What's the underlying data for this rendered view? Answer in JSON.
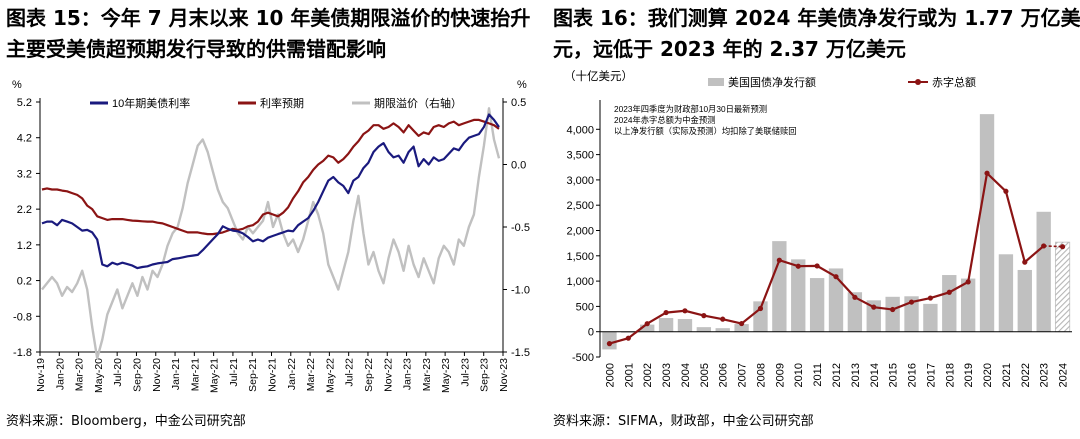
{
  "left": {
    "title_line1": "图表 15：今年 7 月末以来 10 年美债期限溢价的快速抬升",
    "title_line2": "主要受美债超预期发行导致的供需错配影响",
    "source": "资料来源：Bloomberg，中金公司研究部"
  },
  "right": {
    "title_line1": "图表 16：我们测算 2024 年美债净发行或为 1.77 万亿美",
    "title_line2": "元，远低于 2023 年的 2.37 万亿美元",
    "source": "资料来源：SIFMA，财政部，中金公司研究部"
  },
  "chart_data": [
    {
      "type": "line",
      "y_left": {
        "unit": "%",
        "ticks": [
          5.2,
          4.2,
          3.2,
          2.2,
          1.2,
          0.2,
          -0.8,
          -1.8
        ],
        "range": [
          -1.8,
          5.2
        ]
      },
      "y_right": {
        "unit": "%",
        "label": "",
        "ticks": [
          0.5,
          0.0,
          -0.5,
          -1.0,
          -1.5
        ],
        "range": [
          -1.5,
          0.5
        ]
      },
      "x_ticks": [
        "Nov-19",
        "Jan-20",
        "Mar-20",
        "May-20",
        "Jul-20",
        "Sep-20",
        "Nov-20",
        "Jan-21",
        "Mar-21",
        "May-21",
        "Jul-21",
        "Sep-21",
        "Nov-21",
        "Jan-22",
        "Mar-22",
        "May-22",
        "Jul-22",
        "Sep-22",
        "Nov-22",
        "Jan-23",
        "Mar-23",
        "May-23",
        "Jul-23",
        "Sep-23",
        "Nov-23"
      ],
      "legend_position": "top",
      "series": [
        {
          "name": "10年期美债利率",
          "color": "#1a1a7e",
          "axis": "left",
          "values": [
            1.8,
            1.85,
            1.85,
            1.75,
            1.9,
            1.85,
            1.8,
            1.7,
            1.6,
            1.62,
            1.55,
            1.35,
            0.65,
            0.6,
            0.7,
            0.65,
            0.7,
            0.66,
            0.62,
            0.55,
            0.58,
            0.6,
            0.65,
            0.68,
            0.7,
            0.72,
            0.8,
            0.82,
            0.85,
            0.88,
            0.9,
            0.92,
            1.05,
            1.2,
            1.35,
            1.5,
            1.72,
            1.65,
            1.6,
            1.58,
            1.52,
            1.42,
            1.3,
            1.35,
            1.3,
            1.4,
            1.45,
            1.5,
            1.55,
            1.6,
            1.58,
            1.75,
            1.85,
            1.95,
            2.15,
            2.4,
            2.7,
            3.0,
            3.1,
            2.95,
            2.85,
            2.65,
            3.0,
            3.1,
            3.35,
            3.5,
            3.8,
            3.95,
            4.05,
            3.8,
            3.65,
            3.7,
            3.5,
            3.8,
            3.95,
            3.4,
            3.6,
            3.45,
            3.65,
            3.55,
            3.6,
            3.75,
            3.9,
            3.85,
            4.05,
            4.2,
            4.25,
            4.3,
            4.5,
            4.85,
            4.7,
            4.5
          ]
        },
        {
          "name": "利率预期",
          "color": "#8b1414",
          "axis": "left",
          "values": [
            2.75,
            2.78,
            2.75,
            2.75,
            2.72,
            2.7,
            2.65,
            2.6,
            2.5,
            2.3,
            2.2,
            2.0,
            1.95,
            1.9,
            1.92,
            1.92,
            1.92,
            1.9,
            1.88,
            1.87,
            1.86,
            1.85,
            1.85,
            1.82,
            1.8,
            1.75,
            1.7,
            1.65,
            1.6,
            1.55,
            1.55,
            1.55,
            1.52,
            1.5,
            1.5,
            1.52,
            1.55,
            1.6,
            1.65,
            1.62,
            1.65,
            1.72,
            1.75,
            1.85,
            2.05,
            2.1,
            2.05,
            2.0,
            2.1,
            2.25,
            2.5,
            2.7,
            2.95,
            3.1,
            3.3,
            3.45,
            3.55,
            3.7,
            3.65,
            3.5,
            3.6,
            3.75,
            3.95,
            4.1,
            4.3,
            4.4,
            4.55,
            4.55,
            4.45,
            4.5,
            4.6,
            4.5,
            4.35,
            4.55,
            4.4,
            4.25,
            4.35,
            4.3,
            4.5,
            4.55,
            4.5,
            4.6,
            4.65,
            4.55,
            4.6,
            4.65,
            4.7,
            4.7,
            4.65,
            4.6,
            4.55,
            4.45
          ]
        },
        {
          "name": "期限溢价（右轴）",
          "color": "#c0c0c0",
          "axis": "right",
          "values": [
            -1.0,
            -0.95,
            -0.9,
            -0.95,
            -1.05,
            -0.98,
            -1.02,
            -0.95,
            -0.85,
            -1.0,
            -1.3,
            -1.55,
            -1.4,
            -1.2,
            -1.1,
            -1.0,
            -1.15,
            -1.05,
            -0.95,
            -1.05,
            -0.9,
            -1.0,
            -0.85,
            -0.9,
            -0.8,
            -0.65,
            -0.55,
            -0.5,
            -0.35,
            -0.15,
            0.0,
            0.15,
            0.2,
            0.1,
            -0.05,
            -0.2,
            -0.3,
            -0.35,
            -0.45,
            -0.55,
            -0.6,
            -0.5,
            -0.55,
            -0.5,
            -0.45,
            -0.3,
            -0.5,
            -0.4,
            -0.55,
            -0.65,
            -0.6,
            -0.7,
            -0.6,
            -0.45,
            -0.3,
            -0.4,
            -0.55,
            -0.8,
            -0.9,
            -1.0,
            -0.85,
            -0.7,
            -0.45,
            -0.25,
            -0.55,
            -0.8,
            -0.7,
            -0.85,
            -0.95,
            -0.75,
            -0.6,
            -0.7,
            -0.85,
            -0.65,
            -0.8,
            -0.9,
            -0.75,
            -0.85,
            -0.95,
            -0.75,
            -0.65,
            -0.7,
            -0.8,
            -0.6,
            -0.65,
            -0.5,
            -0.4,
            -0.1,
            0.15,
            0.45,
            0.2,
            0.05
          ]
        }
      ]
    },
    {
      "type": "bar",
      "unit_label": "（十亿美元）",
      "categories": [
        "2000",
        "2001",
        "2002",
        "2003",
        "2004",
        "2005",
        "2006",
        "2007",
        "2008",
        "2009",
        "2010",
        "2011",
        "2012",
        "2013",
        "2014",
        "2015",
        "2016",
        "2017",
        "2018",
        "2019",
        "2020",
        "2021",
        "2022",
        "2023",
        "2024"
      ],
      "ylim": [
        -500,
        4500
      ],
      "y_ticks": [
        -500,
        0,
        500,
        1000,
        1500,
        2000,
        2500,
        3000,
        3500,
        4000
      ],
      "legend_position": "top",
      "notes": [
        "2023年四季度为财政部10月30日最新预测",
        "2024年赤字总额为中金预测",
        "以上净发行额（实际及预测）均扣除了美联储赎回"
      ],
      "series": [
        {
          "name": "美国国债净发行额",
          "type": "bar",
          "color": "#c0c0c0",
          "values": [
            -350,
            -20,
            140,
            270,
            250,
            90,
            70,
            150,
            600,
            1790,
            1430,
            1060,
            1250,
            780,
            620,
            690,
            700,
            550,
            1120,
            1050,
            4300,
            1530,
            1220,
            2370,
            1770
          ],
          "projected_last": true
        },
        {
          "name": "赤字总额",
          "type": "line",
          "color": "#8b1414",
          "values": [
            -236,
            -128,
            158,
            378,
            413,
            318,
            248,
            161,
            459,
            1413,
            1294,
            1300,
            1087,
            680,
            485,
            438,
            585,
            665,
            779,
            984,
            3132,
            2775,
            1375,
            1695,
            1680
          ]
        }
      ]
    }
  ]
}
